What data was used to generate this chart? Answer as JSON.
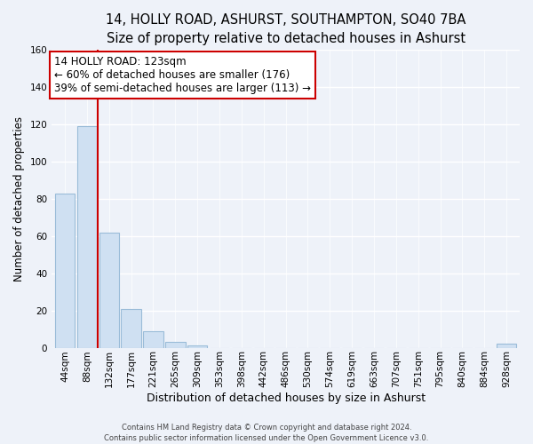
{
  "title1": "14, HOLLY ROAD, ASHURST, SOUTHAMPTON, SO40 7BA",
  "title2": "Size of property relative to detached houses in Ashurst",
  "xlabel": "Distribution of detached houses by size in Ashurst",
  "ylabel": "Number of detached properties",
  "bar_values": [
    83,
    119,
    62,
    21,
    9,
    3,
    1,
    0,
    0,
    0,
    0,
    0,
    0,
    0,
    0,
    0,
    0,
    0,
    0,
    0,
    2
  ],
  "bar_labels": [
    "44sqm",
    "88sqm",
    "132sqm",
    "177sqm",
    "221sqm",
    "265sqm",
    "309sqm",
    "353sqm",
    "398sqm",
    "442sqm",
    "486sqm",
    "530sqm",
    "574sqm",
    "619sqm",
    "663sqm",
    "707sqm",
    "751sqm",
    "795sqm",
    "840sqm",
    "884sqm",
    "928sqm"
  ],
  "bar_color": "#cfe0f2",
  "bar_edge_color": "#9abcd8",
  "vline_bar_index": 1,
  "vline_color": "#cc0000",
  "annotation_title": "14 HOLLY ROAD: 123sqm",
  "annotation_line1": "← 60% of detached houses are smaller (176)",
  "annotation_line2": "39% of semi-detached houses are larger (113) →",
  "annotation_box_facecolor": "#ffffff",
  "annotation_box_edgecolor": "#cc0000",
  "ylim": [
    0,
    160
  ],
  "yticks": [
    0,
    20,
    40,
    60,
    80,
    100,
    120,
    140,
    160
  ],
  "footer1": "Contains HM Land Registry data © Crown copyright and database right 2024.",
  "footer2": "Contains public sector information licensed under the Open Government Licence v3.0.",
  "bg_color": "#eef2f9",
  "plot_bg_color": "#eef2f9",
  "grid_color": "#ffffff",
  "title1_fontsize": 10.5,
  "title2_fontsize": 9,
  "xlabel_fontsize": 9,
  "ylabel_fontsize": 8.5,
  "tick_fontsize": 7.5,
  "footer_fontsize": 6.0,
  "annot_fontsize": 8.5
}
